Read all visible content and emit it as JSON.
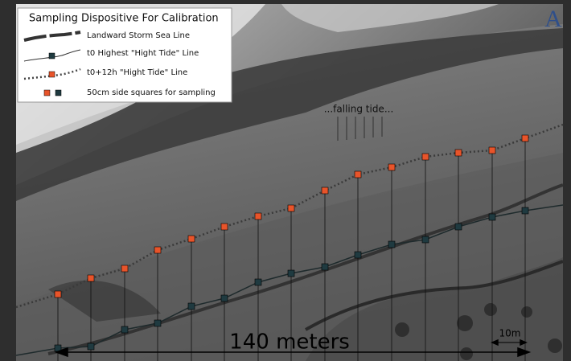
{
  "legend": {
    "title": "Sampling Dispositive For Calibration",
    "items": [
      "Landward Storm Sea Line",
      "t0 Highest \"Hight Tide\" Line",
      "t0+12h \"Hight Tide\" Line",
      "50cm side squares for sampling"
    ]
  },
  "panel_label": "A",
  "annotation": "...falling tide...",
  "scale_main": "140 meters",
  "scale_small": "10m"
}
